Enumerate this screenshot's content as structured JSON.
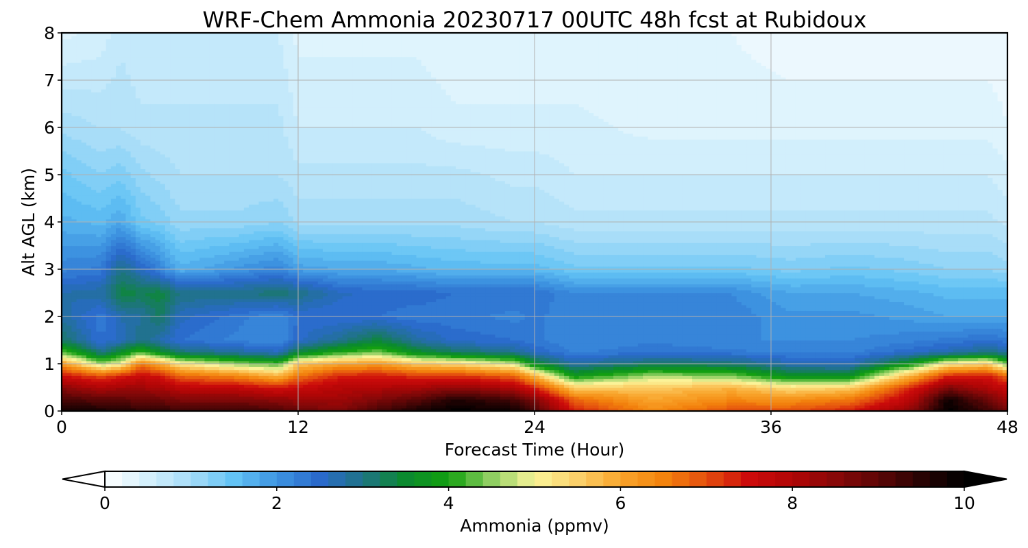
{
  "chart_data": {
    "type": "heatmap",
    "title": "WRF-Chem Ammonia  20230717 00UTC 48h fcst at Rubidoux",
    "xlabel": "Forecast Time (Hour)",
    "ylabel": "Alt AGL (km)",
    "xlim": [
      0,
      48
    ],
    "ylim": [
      0,
      8
    ],
    "x_ticks": [
      "0",
      "12",
      "24",
      "36",
      "48"
    ],
    "y_ticks": [
      "0",
      "1",
      "2",
      "3",
      "4",
      "5",
      "6",
      "7",
      "8"
    ],
    "grid": true,
    "colorbar": {
      "label": "Ammonia  (ppmv)",
      "min": 0,
      "max": 10,
      "ticks": [
        "0",
        "2",
        "4",
        "6",
        "8",
        "10"
      ],
      "extend": "both",
      "stops": [
        {
          "v": 0.0,
          "c": "#ffffff"
        },
        {
          "v": 0.5,
          "c": "#d4f0fc"
        },
        {
          "v": 1.0,
          "c": "#a6dcf8"
        },
        {
          "v": 1.5,
          "c": "#63c3f5"
        },
        {
          "v": 2.0,
          "c": "#3e94e1"
        },
        {
          "v": 2.5,
          "c": "#2a6acb"
        },
        {
          "v": 3.0,
          "c": "#1f7385"
        },
        {
          "v": 3.5,
          "c": "#0b8a2f"
        },
        {
          "v": 4.0,
          "c": "#13a00f"
        },
        {
          "v": 4.5,
          "c": "#8fce62"
        },
        {
          "v": 5.0,
          "c": "#fbf59a"
        },
        {
          "v": 5.5,
          "c": "#fbd06a"
        },
        {
          "v": 6.0,
          "c": "#f9a52c"
        },
        {
          "v": 6.5,
          "c": "#f3830d"
        },
        {
          "v": 7.0,
          "c": "#e44f0e"
        },
        {
          "v": 7.5,
          "c": "#cc0b0b"
        },
        {
          "v": 8.0,
          "c": "#b10606"
        },
        {
          "v": 8.5,
          "c": "#880808"
        },
        {
          "v": 9.0,
          "c": "#5c0606"
        },
        {
          "v": 9.5,
          "c": "#280303"
        },
        {
          "v": 10.0,
          "c": "#000000"
        }
      ]
    },
    "profiles": {
      "altitude_km": [
        0,
        0.25,
        0.5,
        0.75,
        1.0,
        1.25,
        1.5,
        2.0,
        2.5,
        3.0,
        4.0,
        5.0,
        6.0,
        8.0
      ],
      "columns": [
        {
          "hour": 0,
          "values": [
            9.8,
            9.2,
            8.5,
            7.5,
            6.2,
            4.3,
            3.2,
            2.8,
            2.7,
            2.2,
            1.7,
            1.4,
            1.0,
            0.4
          ]
        },
        {
          "hour": 2,
          "values": [
            9.7,
            9.0,
            8.0,
            7.0,
            4.6,
            3.0,
            2.4,
            2.3,
            2.8,
            2.3,
            1.6,
            1.2,
            0.9,
            0.5
          ]
        },
        {
          "hour": 3,
          "values": [
            9.6,
            9.0,
            8.2,
            7.3,
            5.0,
            3.6,
            2.6,
            2.7,
            3.4,
            3.0,
            1.8,
            1.3,
            0.9,
            0.7
          ]
        },
        {
          "hour": 4,
          "values": [
            9.5,
            8.8,
            8.2,
            7.6,
            6.6,
            4.2,
            3.0,
            2.8,
            3.3,
            2.6,
            1.4,
            1.1,
            0.8,
            0.6
          ]
        },
        {
          "hour": 5,
          "values": [
            9.5,
            8.8,
            8.1,
            7.4,
            6.0,
            3.6,
            2.7,
            3.2,
            3.4,
            2.2,
            1.3,
            1.0,
            0.8,
            0.6
          ]
        },
        {
          "hour": 6,
          "values": [
            9.3,
            8.6,
            7.8,
            6.8,
            5.2,
            3.1,
            2.4,
            2.6,
            3.0,
            1.7,
            1.1,
            0.9,
            0.8,
            0.6
          ]
        },
        {
          "hour": 9,
          "values": [
            9.4,
            8.6,
            7.7,
            6.4,
            4.5,
            2.8,
            2.2,
            2.3,
            3.0,
            2.0,
            1.1,
            0.9,
            0.8,
            0.6
          ]
        },
        {
          "hour": 11,
          "values": [
            9.2,
            8.4,
            7.4,
            5.8,
            4.2,
            2.6,
            2.1,
            2.1,
            3.1,
            2.2,
            1.2,
            0.9,
            0.8,
            0.6
          ]
        },
        {
          "hour": 12,
          "values": [
            8.9,
            8.3,
            7.6,
            6.6,
            5.6,
            3.4,
            2.5,
            2.4,
            3.0,
            1.9,
            1.0,
            0.8,
            0.6,
            0.4
          ]
        },
        {
          "hour": 14,
          "values": [
            8.6,
            8.2,
            7.9,
            7.3,
            6.0,
            4.0,
            2.9,
            2.4,
            2.6,
            1.8,
            1.0,
            0.8,
            0.6,
            0.4
          ]
        },
        {
          "hour": 16,
          "values": [
            9.2,
            8.6,
            8.0,
            7.4,
            6.2,
            4.4,
            3.4,
            2.4,
            2.5,
            1.8,
            1.0,
            0.8,
            0.6,
            0.4
          ]
        },
        {
          "hour": 18,
          "values": [
            9.7,
            9.0,
            8.1,
            7.2,
            5.6,
            3.6,
            2.8,
            2.3,
            2.5,
            1.7,
            1.0,
            0.8,
            0.6,
            0.4
          ]
        },
        {
          "hour": 20,
          "values": [
            10.0,
            9.6,
            8.4,
            7.2,
            5.4,
            3.2,
            2.5,
            2.3,
            2.4,
            1.6,
            1.0,
            0.8,
            0.5,
            0.3
          ]
        },
        {
          "hour": 23,
          "values": [
            9.8,
            9.2,
            8.0,
            6.8,
            4.8,
            2.9,
            2.4,
            2.2,
            2.4,
            1.6,
            0.9,
            0.7,
            0.5,
            0.3
          ]
        },
        {
          "hour": 24,
          "values": [
            9.2,
            8.6,
            7.3,
            5.8,
            3.6,
            2.6,
            2.3,
            2.3,
            2.4,
            1.6,
            0.9,
            0.7,
            0.5,
            0.3
          ]
        },
        {
          "hour": 26,
          "values": [
            7.4,
            6.8,
            5.5,
            3.8,
            2.8,
            2.2,
            2.1,
            2.1,
            2.1,
            1.4,
            0.8,
            0.6,
            0.5,
            0.3
          ]
        },
        {
          "hour": 30,
          "values": [
            6.4,
            6.0,
            5.6,
            4.6,
            3.2,
            2.4,
            2.2,
            2.2,
            2.1,
            1.4,
            0.8,
            0.6,
            0.4,
            0.3
          ]
        },
        {
          "hour": 34,
          "values": [
            7.0,
            6.4,
            5.8,
            4.4,
            3.1,
            2.3,
            2.1,
            2.2,
            2.1,
            1.4,
            0.8,
            0.6,
            0.4,
            0.3
          ]
        },
        {
          "hour": 37,
          "values": [
            7.0,
            6.3,
            5.3,
            3.6,
            2.7,
            2.2,
            2.1,
            2.0,
            1.8,
            1.3,
            0.8,
            0.6,
            0.4,
            0.2
          ]
        },
        {
          "hour": 40,
          "values": [
            7.4,
            6.6,
            5.5,
            3.6,
            2.6,
            2.2,
            2.1,
            2.0,
            1.8,
            1.4,
            0.8,
            0.6,
            0.4,
            0.2
          ]
        },
        {
          "hour": 43,
          "values": [
            8.4,
            7.8,
            7.2,
            5.8,
            3.8,
            2.5,
            2.2,
            1.9,
            1.7,
            1.3,
            0.8,
            0.6,
            0.4,
            0.2
          ]
        },
        {
          "hour": 45,
          "values": [
            10.0,
            9.8,
            8.6,
            7.3,
            5.2,
            2.7,
            2.3,
            1.8,
            1.6,
            1.2,
            0.8,
            0.6,
            0.4,
            0.2
          ]
        },
        {
          "hour": 47,
          "values": [
            9.3,
            8.8,
            8.0,
            7.4,
            5.5,
            3.0,
            2.4,
            1.8,
            1.6,
            1.2,
            0.8,
            0.6,
            0.4,
            0.2
          ]
        },
        {
          "hour": 48,
          "values": [
            8.8,
            8.2,
            7.6,
            6.8,
            4.3,
            2.8,
            2.3,
            1.8,
            1.6,
            1.1,
            0.7,
            0.5,
            0.3,
            0.2
          ]
        }
      ]
    }
  }
}
